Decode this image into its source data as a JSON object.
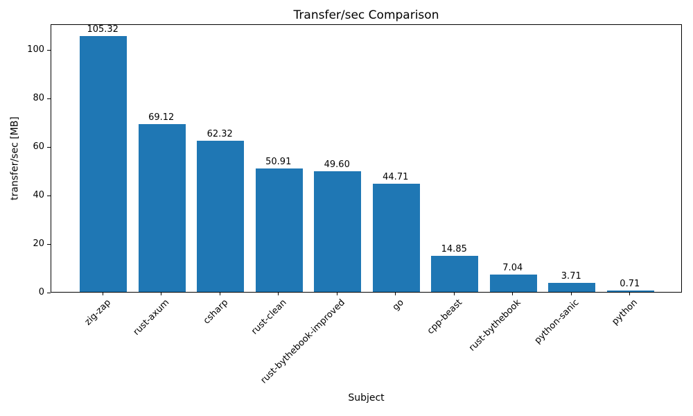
{
  "chart_data": {
    "type": "bar",
    "title": "Transfer/sec Comparison",
    "xlabel": "Subject",
    "ylabel": "transfer/sec [MB]",
    "categories": [
      "zig-zap",
      "rust-axum",
      "csharp",
      "rust-clean",
      "rust-bythebook-improved",
      "go",
      "cpp-beast",
      "rust-bythebook",
      "python-sanic",
      "python"
    ],
    "values": [
      105.32,
      69.12,
      62.32,
      50.91,
      49.6,
      44.71,
      14.85,
      7.04,
      3.71,
      0.71
    ],
    "bar_labels": [
      "105.32",
      "69.12",
      "62.32",
      "50.91",
      "49.60",
      "44.71",
      "14.85",
      "7.04",
      "3.71",
      "0.71"
    ],
    "yticks": [
      0,
      20,
      40,
      60,
      80,
      100
    ],
    "ylim": [
      0,
      110.59
    ],
    "bar_color": "#1f77b4",
    "spine_color": "#000000",
    "grid": false,
    "legend": "none",
    "x_tick_rotation_deg": 45,
    "bar_width_ratio": 0.8
  }
}
